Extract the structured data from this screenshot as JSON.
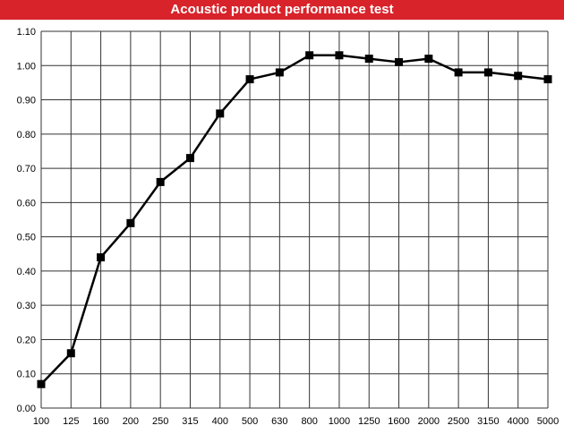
{
  "chart_data": {
    "type": "line",
    "title": "Acoustic product performance test",
    "xlabel": "",
    "ylabel": "",
    "categories": [
      "100",
      "125",
      "160",
      "200",
      "250",
      "315",
      "400",
      "500",
      "630",
      "800",
      "1000",
      "1250",
      "1600",
      "2000",
      "2500",
      "3150",
      "4000",
      "5000"
    ],
    "series": [
      {
        "values": [
          0.07,
          0.16,
          0.44,
          0.54,
          0.66,
          0.73,
          0.86,
          0.96,
          0.98,
          1.03,
          1.03,
          1.02,
          1.01,
          1.02,
          0.98,
          0.98,
          0.97,
          0.96
        ]
      }
    ],
    "ylim": [
      0,
      1.1
    ],
    "yticks": [
      "0.00",
      "0.10",
      "0.20",
      "0.30",
      "0.40",
      "0.50",
      "0.60",
      "0.70",
      "0.80",
      "0.90",
      "1.00",
      "1.10"
    ],
    "grid": true,
    "legend": "none",
    "colors": {
      "line": "#000000",
      "title_bg": "#d8232a"
    }
  }
}
